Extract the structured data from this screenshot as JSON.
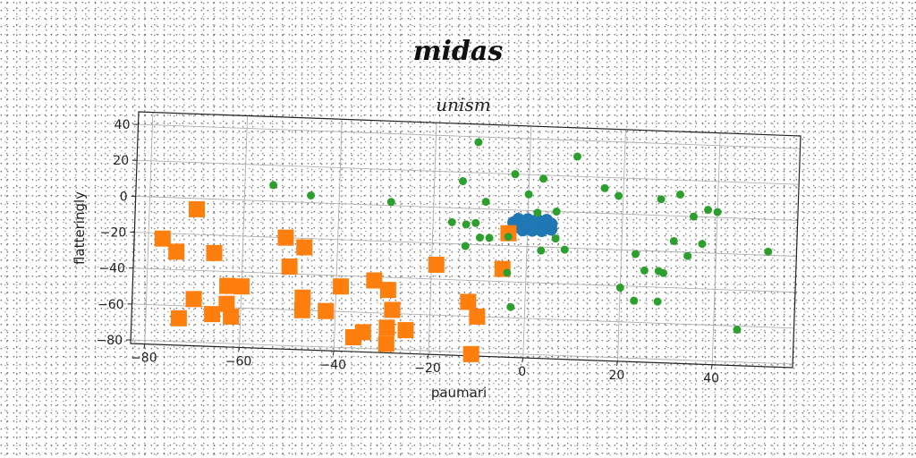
{
  "suptitle": "midas",
  "chart_data": {
    "type": "scatter",
    "title": "unism",
    "xlabel": "paumari",
    "ylabel": "flatteringly",
    "xlim": [
      -83,
      57
    ],
    "ylim": [
      -82,
      47
    ],
    "xticks": [
      -80,
      -60,
      -40,
      -20,
      0,
      20,
      40
    ],
    "yticks": [
      40,
      20,
      0,
      -20,
      -40,
      -60,
      -80
    ],
    "grid": true,
    "colors": {
      "blue": "#1f77b4",
      "orange": "#ff7f0e",
      "green": "#2ca02c"
    },
    "series": [
      {
        "marker": "circle",
        "color": "#1f77b4",
        "points": [
          [
            -2,
            -5
          ],
          [
            -1,
            -6
          ],
          [
            0,
            -5
          ],
          [
            1,
            -6
          ],
          [
            2,
            -5
          ],
          [
            3,
            -6
          ],
          [
            4,
            -5
          ],
          [
            -3,
            -7
          ],
          [
            -2,
            -8
          ],
          [
            -1,
            -9
          ],
          [
            0,
            -8
          ],
          [
            1,
            -9
          ],
          [
            2,
            -8
          ],
          [
            3,
            -9
          ],
          [
            4,
            -8
          ],
          [
            5,
            -7
          ],
          [
            -3,
            -10
          ],
          [
            -1,
            -11
          ],
          [
            1,
            -11
          ],
          [
            3,
            -11
          ],
          [
            5,
            -10
          ],
          [
            0,
            -6
          ],
          [
            2,
            -10
          ]
        ]
      },
      {
        "marker": "square",
        "color": "#ff7f0e",
        "points": [
          [
            -70,
            -6
          ],
          [
            -77,
            -23
          ],
          [
            -74,
            -30
          ],
          [
            -66,
            -30
          ],
          [
            -51,
            -20
          ],
          [
            -47,
            -25
          ],
          [
            -50,
            -36
          ],
          [
            -70,
            -56
          ],
          [
            -63,
            -48
          ],
          [
            -60,
            -48
          ],
          [
            -63,
            -58
          ],
          [
            -66,
            -64
          ],
          [
            -62,
            -65
          ],
          [
            -73,
            -67
          ],
          [
            -47,
            -53
          ],
          [
            -47,
            -60
          ],
          [
            -42,
            -60
          ],
          [
            -39,
            -46
          ],
          [
            -32,
            -42
          ],
          [
            -29,
            -47
          ],
          [
            -28,
            -58
          ],
          [
            -29,
            -68
          ],
          [
            -25,
            -69
          ],
          [
            -34,
            -71
          ],
          [
            -36,
            -74
          ],
          [
            -29,
            -77
          ],
          [
            -19,
            -32
          ],
          [
            -12,
            -52
          ],
          [
            -10,
            -60
          ],
          [
            -11,
            -81
          ],
          [
            -5,
            -33
          ],
          [
            -4,
            -13
          ]
        ]
      },
      {
        "marker": "circle",
        "color": "#2ca02c",
        "points": [
          [
            -11,
            37
          ],
          [
            10,
            31
          ],
          [
            -3,
            20
          ],
          [
            0,
            9
          ],
          [
            3,
            18
          ],
          [
            -14,
            15
          ],
          [
            -9,
            4
          ],
          [
            -29,
            2
          ],
          [
            -46,
            4
          ],
          [
            -54,
            9
          ],
          [
            16,
            14
          ],
          [
            19,
            10
          ],
          [
            28,
            9
          ],
          [
            32,
            12
          ],
          [
            38,
            4
          ],
          [
            35,
            0
          ],
          [
            40,
            3
          ],
          [
            6,
            0
          ],
          [
            2,
            -1
          ],
          [
            -11,
            -8
          ],
          [
            -13,
            -9
          ],
          [
            -16,
            -8
          ],
          [
            -10,
            -16
          ],
          [
            -13,
            -21
          ],
          [
            -8,
            -16
          ],
          [
            -4,
            -15
          ],
          [
            6,
            -15
          ],
          [
            3,
            -22
          ],
          [
            8,
            -21
          ],
          [
            23,
            -22
          ],
          [
            31,
            -14
          ],
          [
            34,
            -22
          ],
          [
            37,
            -15
          ],
          [
            51,
            -18
          ],
          [
            25,
            -31
          ],
          [
            28,
            -31
          ],
          [
            29,
            -32
          ],
          [
            20,
            -41
          ],
          [
            23,
            -48
          ],
          [
            28,
            -48
          ],
          [
            -4,
            -35
          ],
          [
            -3,
            -54
          ],
          [
            45,
            -62
          ]
        ]
      }
    ]
  }
}
